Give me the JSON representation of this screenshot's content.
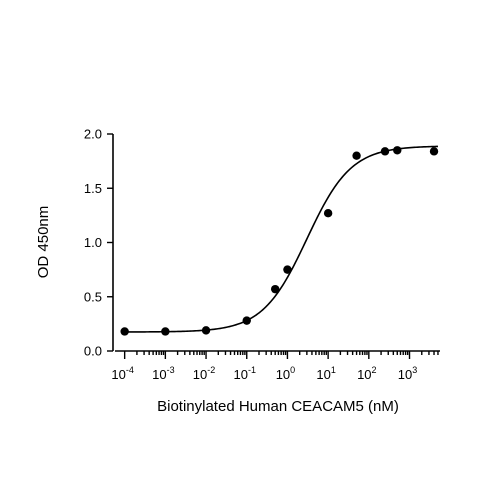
{
  "chart_data": {
    "type": "scatter",
    "xlabel": "Biotinylated Human CEACAM5 (nM)",
    "ylabel": "OD 450nm",
    "xscale": "log",
    "xlim": [
      0.0001,
      5000
    ],
    "ylim": [
      0,
      2.0
    ],
    "y_ticks": [
      "0.0",
      "0.5",
      "1.0",
      "1.5",
      "2.0"
    ],
    "x_ticks": [
      {
        "base": "10",
        "exp": "-4"
      },
      {
        "base": "10",
        "exp": "-3"
      },
      {
        "base": "10",
        "exp": "-2"
      },
      {
        "base": "10",
        "exp": "-1"
      },
      {
        "base": "10",
        "exp": "0"
      },
      {
        "base": "10",
        "exp": "1"
      },
      {
        "base": "10",
        "exp": "2"
      },
      {
        "base": "10",
        "exp": "3"
      }
    ],
    "x_tick_values": [
      0.0001,
      0.001,
      0.01,
      0.1,
      1,
      10,
      100,
      1000
    ],
    "points": [
      {
        "x": 0.0001,
        "y": 0.18
      },
      {
        "x": 0.001,
        "y": 0.18
      },
      {
        "x": 0.01,
        "y": 0.19
      },
      {
        "x": 0.1,
        "y": 0.28
      },
      {
        "x": 0.5,
        "y": 0.57
      },
      {
        "x": 1,
        "y": 0.75
      },
      {
        "x": 10,
        "y": 1.27
      },
      {
        "x": 50,
        "y": 1.8
      },
      {
        "x": 250,
        "y": 1.84
      },
      {
        "x": 500,
        "y": 1.85
      },
      {
        "x": 4000,
        "y": 1.84
      }
    ],
    "fit": {
      "type": "4PL",
      "bottom": 0.175,
      "top": 1.89,
      "ec50": 3.0,
      "hill": 0.8
    },
    "grid": false,
    "legend": "none"
  }
}
